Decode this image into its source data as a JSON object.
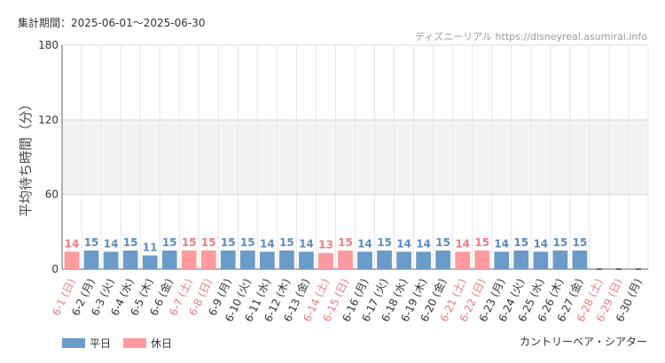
{
  "period_text": "集計期間：2025-06-01～2025-06-30",
  "source_text": "ディズニーリアル https://disneyreal.asumirai.info",
  "attraction_name": "カントリーベア・シアター",
  "legend": {
    "weekday": "平日",
    "holiday": "休日"
  },
  "colors": {
    "weekday": "#6b9bc8",
    "holiday": "#ff9a9e",
    "weekday_text": "#5b8bc0",
    "holiday_text": "#f07a80",
    "axis_text": "#333333"
  },
  "chart_data": {
    "type": "bar",
    "ylabel": "平均待ち時間（分）",
    "ylim": [
      0,
      180
    ],
    "yticks": [
      0,
      60,
      120,
      180
    ],
    "shaded_band": [
      60,
      120
    ],
    "categories": [
      "6-1 (日)",
      "6-2 (月)",
      "6-3 (火)",
      "6-4 (水)",
      "6-5 (木)",
      "6-6 (金)",
      "6-7 (土)",
      "6-8 (日)",
      "6-9 (月)",
      "6-10 (火)",
      "6-11 (水)",
      "6-12 (木)",
      "6-13 (金)",
      "6-14 (土)",
      "6-15 (日)",
      "6-16 (月)",
      "6-17 (火)",
      "6-18 (水)",
      "6-19 (木)",
      "6-20 (金)",
      "6-21 (土)",
      "6-22 (日)",
      "6-23 (月)",
      "6-24 (火)",
      "6-25 (水)",
      "6-26 (木)",
      "6-27 (金)",
      "6-28 (土)",
      "6-29 (日)",
      "6-30 (月)"
    ],
    "values": [
      14,
      15,
      14,
      15,
      11,
      15,
      15,
      15,
      15,
      15,
      14,
      15,
      14,
      13,
      15,
      14,
      15,
      14,
      14,
      15,
      14,
      15,
      14,
      15,
      14,
      15,
      15,
      null,
      null,
      null
    ],
    "day_types": [
      "holiday",
      "weekday",
      "weekday",
      "weekday",
      "weekday",
      "weekday",
      "holiday",
      "holiday",
      "weekday",
      "weekday",
      "weekday",
      "weekday",
      "weekday",
      "holiday",
      "holiday",
      "weekday",
      "weekday",
      "weekday",
      "weekday",
      "weekday",
      "holiday",
      "holiday",
      "weekday",
      "weekday",
      "weekday",
      "weekday",
      "weekday",
      "holiday",
      "holiday",
      "weekday"
    ],
    "grid": true,
    "legend_position": "bottom-left"
  }
}
